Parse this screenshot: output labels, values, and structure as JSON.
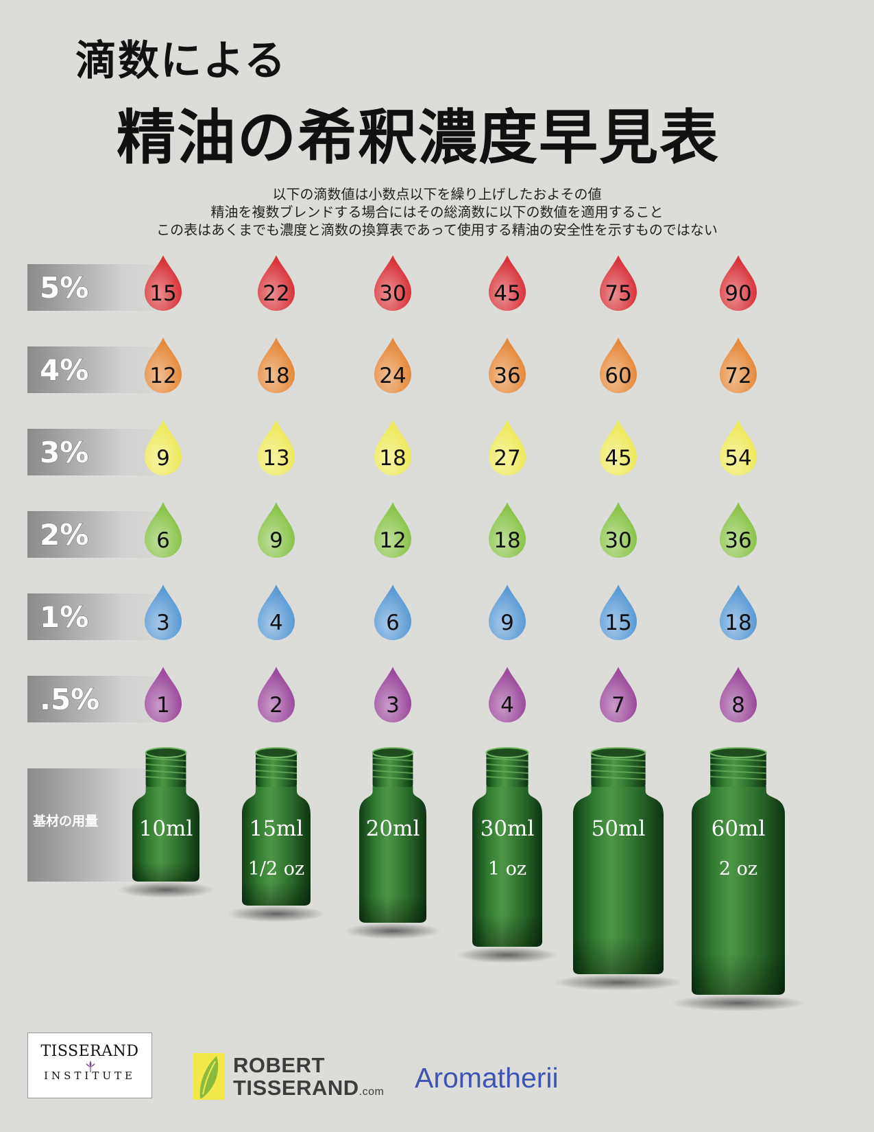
{
  "title": {
    "line1": "滴数による",
    "line2": "精油の希釈濃度早見表"
  },
  "notes": [
    "以下の滴数値は小数点以下を繰り上げしたおよその値",
    "精油を複数ブレンドする場合にはその総滴数に以下の数値を適用すること",
    "この表はあくまでも濃度と滴数の換算表であって使用する精油の安全性を示すものではない"
  ],
  "chart_data": {
    "type": "table",
    "row_labels": [
      "5%",
      "4%",
      "3%",
      "2%",
      "1%",
      ".5%"
    ],
    "row_colors": [
      "#d8353b",
      "#e58a3c",
      "#eeea5c",
      "#8bc34a",
      "#5b9bd5",
      "#9c4b9c"
    ],
    "columns": [
      "10ml",
      "15ml",
      "20ml",
      "30ml",
      "50ml",
      "60ml"
    ],
    "column_oz": [
      "",
      "1/2 oz",
      "",
      "1 oz",
      "",
      "2 oz"
    ],
    "base_label": "基材の用量",
    "values": [
      [
        15,
        22,
        30,
        45,
        75,
        90
      ],
      [
        12,
        18,
        24,
        36,
        60,
        72
      ],
      [
        9,
        13,
        18,
        27,
        45,
        54
      ],
      [
        6,
        9,
        12,
        18,
        30,
        36
      ],
      [
        3,
        4,
        6,
        9,
        15,
        18
      ],
      [
        1,
        2,
        3,
        4,
        7,
        8
      ]
    ]
  },
  "logos": {
    "tisserand_institute": [
      "TISSERAND",
      "INSTITUTE"
    ],
    "robert_tisserand": [
      "ROBERT",
      "TISSERAND",
      ".com"
    ],
    "aromatherii": "Aromatherii"
  }
}
